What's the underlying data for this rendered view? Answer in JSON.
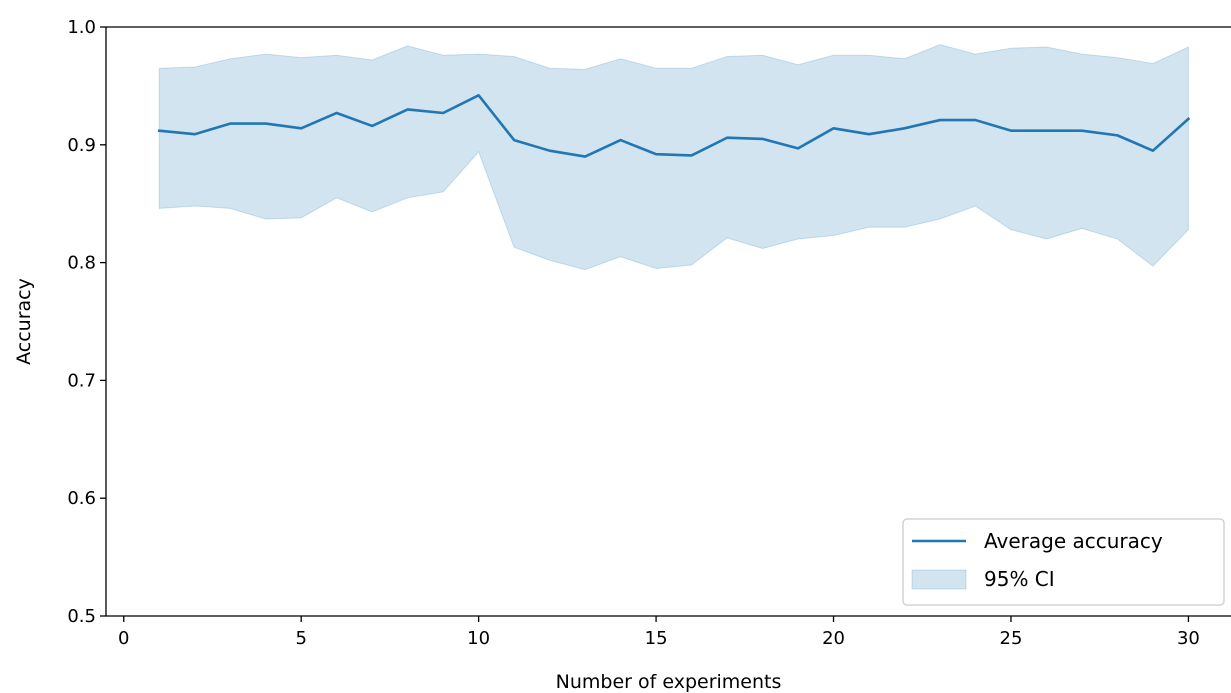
{
  "chart_data": {
    "type": "line",
    "title": "",
    "xlabel": "Number of experiments",
    "ylabel": "Accuracy",
    "xlim": [
      -0.5,
      31.2
    ],
    "ylim": [
      0.5,
      1.0
    ],
    "xticks": [
      0,
      5,
      10,
      15,
      20,
      25,
      30
    ],
    "yticks": [
      0.5,
      0.6,
      0.7,
      0.8,
      0.9,
      1.0
    ],
    "xtick_labels": [
      "0",
      "5",
      "10",
      "15",
      "20",
      "25",
      "30"
    ],
    "ytick_labels": [
      "0.5",
      "0.6",
      "0.7",
      "0.8",
      "0.9",
      "1.0"
    ],
    "grid": false,
    "legend_position": "lower right",
    "x": [
      1,
      2,
      3,
      4,
      5,
      6,
      7,
      8,
      9,
      10,
      11,
      12,
      13,
      14,
      15,
      16,
      17,
      18,
      19,
      20,
      21,
      22,
      23,
      24,
      25,
      26,
      27,
      28,
      29,
      30
    ],
    "series": [
      {
        "name": "Average accuracy",
        "kind": "line",
        "color": "#1f77b4",
        "values": [
          0.912,
          0.909,
          0.918,
          0.918,
          0.914,
          0.927,
          0.916,
          0.93,
          0.927,
          0.942,
          0.904,
          0.895,
          0.89,
          0.904,
          0.892,
          0.891,
          0.906,
          0.905,
          0.897,
          0.914,
          0.909,
          0.914,
          0.921,
          0.921,
          0.912,
          0.912,
          0.912,
          0.908,
          0.895,
          0.922
        ]
      },
      {
        "name": "95% CI",
        "kind": "band",
        "color": "#1f77b4",
        "lower": [
          0.846,
          0.848,
          0.846,
          0.837,
          0.838,
          0.855,
          0.843,
          0.855,
          0.86,
          0.894,
          0.813,
          0.802,
          0.794,
          0.805,
          0.795,
          0.798,
          0.821,
          0.812,
          0.82,
          0.823,
          0.83,
          0.83,
          0.837,
          0.848,
          0.828,
          0.82,
          0.829,
          0.82,
          0.797,
          0.828
        ],
        "upper": [
          0.965,
          0.966,
          0.973,
          0.977,
          0.974,
          0.976,
          0.972,
          0.984,
          0.976,
          0.977,
          0.975,
          0.965,
          0.964,
          0.973,
          0.965,
          0.965,
          0.975,
          0.976,
          0.968,
          0.976,
          0.976,
          0.973,
          0.985,
          0.977,
          0.982,
          0.983,
          0.977,
          0.974,
          0.969,
          0.983
        ]
      }
    ]
  }
}
